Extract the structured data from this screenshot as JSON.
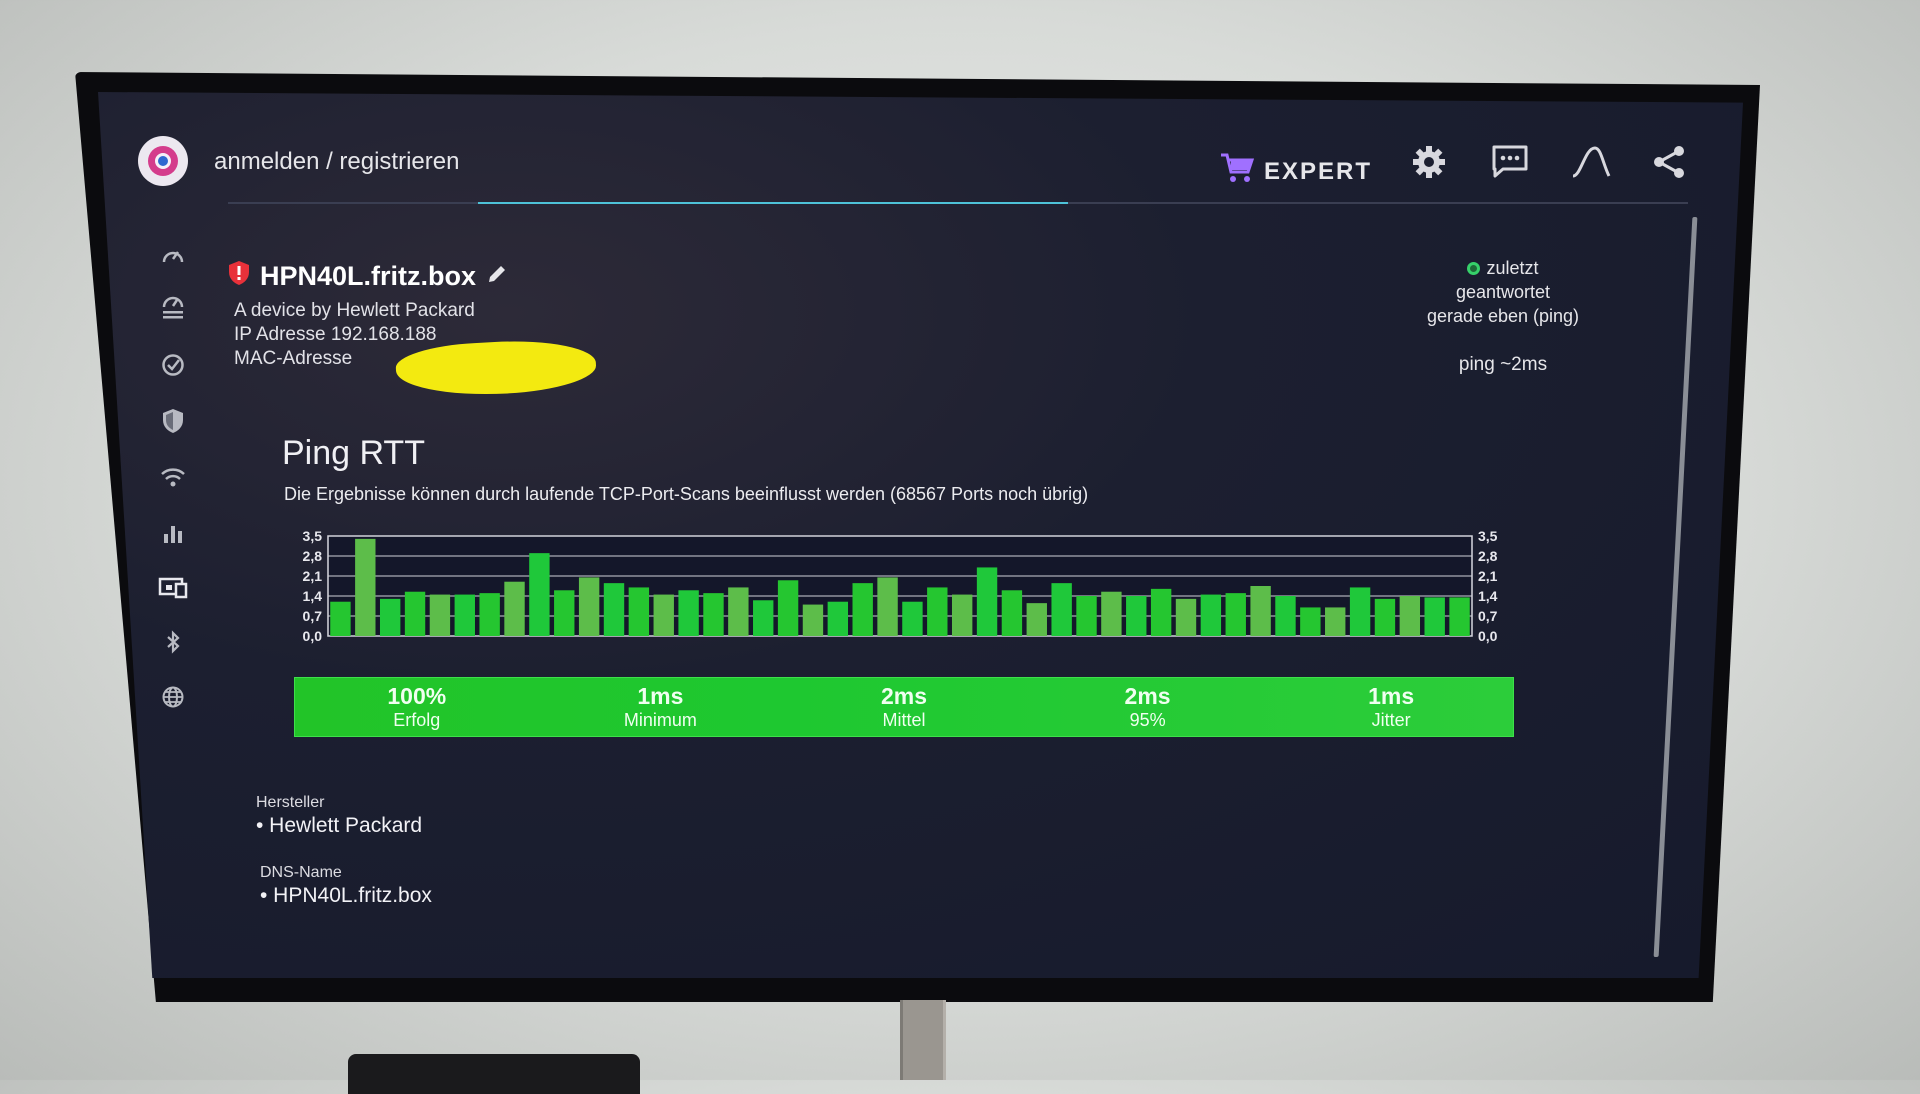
{
  "topbar": {
    "title": "anmelden / registrieren",
    "expert_label": "EXPERT"
  },
  "icons": {
    "logo": "app-logo",
    "cart": "cart-icon",
    "settings": "gear-icon",
    "chat": "chat-icon",
    "graph": "curve-icon",
    "share": "share-icon",
    "sidebar": [
      "speedometer-icon",
      "speedtest-list-icon",
      "check-circle-icon",
      "shield-icon",
      "wifi-icon",
      "bar-chart-icon",
      "devices-icon",
      "bluetooth-icon",
      "globe-icon"
    ]
  },
  "device": {
    "name": "HPN40L.fritz.box",
    "vendor_line": "A device by Hewlett Packard",
    "ip_label": "IP Adresse",
    "ip_value": "192.168.188",
    "mac_label": "MAC-Adresse"
  },
  "status": {
    "line1": "zuletzt",
    "line2": "geantwortet",
    "line3": "gerade eben (ping)",
    "ping": "ping ~2ms",
    "indicator_color": "#36d06a"
  },
  "ping_section": {
    "title": "Ping RTT",
    "subtitle": "Die Ergebnisse können durch laufende TCP-Port-Scans beeinflusst werden (68567 Ports noch übrig)"
  },
  "chart_data": {
    "type": "bar",
    "yticks": [
      "3,5",
      "2,8",
      "2,1",
      "1,4",
      "0,7",
      "0,0"
    ],
    "ylim": [
      0,
      3.5
    ],
    "grid": true,
    "values": [
      1.2,
      3.4,
      1.3,
      1.55,
      1.45,
      1.45,
      1.5,
      1.9,
      2.9,
      1.6,
      2.05,
      1.85,
      1.7,
      1.45,
      1.6,
      1.5,
      1.7,
      1.25,
      1.95,
      1.1,
      1.2,
      1.85,
      2.05,
      1.2,
      1.7,
      1.45,
      2.4,
      1.6,
      1.15,
      1.85,
      1.4,
      1.55,
      1.4,
      1.65,
      1.3,
      1.45,
      1.5,
      1.75,
      1.4,
      1.0,
      1.0,
      1.7,
      1.3,
      1.4,
      1.35,
      1.35
    ],
    "bar_colors": [
      "#25c630",
      "#5dbd4a",
      "#1fc83a"
    ]
  },
  "summary": [
    {
      "value": "100%",
      "label": "Erfolg"
    },
    {
      "value": "1ms",
      "label": "Minimum"
    },
    {
      "value": "2ms",
      "label": "Mittel"
    },
    {
      "value": "2ms",
      "label": "95%"
    },
    {
      "value": "1ms",
      "label": "Jitter"
    }
  ],
  "details": {
    "manufacturer_label": "Hersteller",
    "manufacturer_value": "• Hewlett Packard",
    "dns_label": "DNS-Name",
    "dns_value": "• HPN40L.fritz.box"
  },
  "colors": {
    "accent": "#4ec2d8",
    "success": "#25c630",
    "cart": "#a070ff"
  }
}
